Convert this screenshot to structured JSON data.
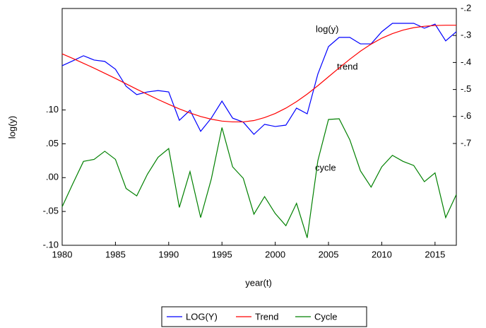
{
  "chart_data": {
    "type": "line",
    "y_label": "log(y)",
    "x_label": "year(t)",
    "annotations": [
      "log(y)",
      "trend",
      "cycle"
    ],
    "x": [
      1980,
      1981,
      1982,
      1983,
      1984,
      1985,
      1986,
      1987,
      1988,
      1989,
      1990,
      1991,
      1992,
      1993,
      1994,
      1995,
      1996,
      1997,
      1998,
      1999,
      2000,
      2001,
      2002,
      2003,
      2004,
      2005,
      2006,
      2007,
      2008,
      2009,
      2010,
      2011,
      2012,
      2013,
      2014,
      2015,
      2016,
      2017
    ],
    "xlim": [
      1980,
      2017
    ],
    "xticks": [
      1980,
      1985,
      1990,
      1995,
      2000,
      2005,
      2010,
      2015
    ],
    "ylim": [
      -0.1,
      0.25
    ],
    "yticks": [
      {
        "value": -0.1,
        "label": "-.10"
      },
      {
        "value": -0.05,
        "label": "-.05"
      },
      {
        "value": 0,
        "label": ".00"
      },
      {
        "value": 0.05,
        "label": ".05"
      },
      {
        "value": 0.1,
        "label": ".10"
      }
    ],
    "y2lim": [
      -1.077,
      -0.2
    ],
    "y2ticks": [
      {
        "value": -0.7,
        "label": "-.7"
      },
      {
        "value": -0.6,
        "label": "-.6"
      },
      {
        "value": -0.5,
        "label": "-.5"
      },
      {
        "value": -0.4,
        "label": "-.4"
      },
      {
        "value": -0.3,
        "label": "-.3"
      },
      {
        "value": -0.2,
        "label": "-.2"
      }
    ],
    "series": [
      {
        "name": "LOG(Y)",
        "color": "#0000ff",
        "axis": "y2",
        "values": [
          -0.412,
          -0.394,
          -0.375,
          -0.391,
          -0.396,
          -0.425,
          -0.488,
          -0.519,
          -0.509,
          -0.504,
          -0.509,
          -0.614,
          -0.577,
          -0.655,
          -0.606,
          -0.543,
          -0.606,
          -0.621,
          -0.666,
          -0.629,
          -0.637,
          -0.632,
          -0.569,
          -0.59,
          -0.443,
          -0.341,
          -0.307,
          -0.307,
          -0.331,
          -0.331,
          -0.286,
          -0.255,
          -0.255,
          -0.255,
          -0.273,
          -0.258,
          -0.32,
          -0.286
        ]
      },
      {
        "name": "Trend",
        "color": "#ff0000",
        "axis": "y2",
        "values": [
          -0.368,
          -0.385,
          -0.403,
          -0.421,
          -0.44,
          -0.459,
          -0.479,
          -0.499,
          -0.518,
          -0.537,
          -0.555,
          -0.572,
          -0.587,
          -0.6,
          -0.61,
          -0.617,
          -0.62,
          -0.62,
          -0.615,
          -0.604,
          -0.589,
          -0.569,
          -0.545,
          -0.517,
          -0.486,
          -0.453,
          -0.42,
          -0.388,
          -0.358,
          -0.332,
          -0.31,
          -0.293,
          -0.28,
          -0.271,
          -0.266,
          -0.263,
          -0.262,
          -0.262
        ]
      },
      {
        "name": "Cycle",
        "color": "#008000",
        "values": [
          -0.043,
          -0.009,
          0.024,
          0.027,
          0.039,
          0.027,
          -0.016,
          -0.027,
          0.005,
          0.03,
          0.043,
          -0.044,
          0.009,
          -0.059,
          -0.002,
          0.074,
          0.016,
          -0.001,
          -0.054,
          -0.028,
          -0.053,
          -0.071,
          -0.038,
          -0.089,
          0.025,
          0.086,
          0.087,
          0.056,
          0.01,
          -0.014,
          0.016,
          0.033,
          0.024,
          0.018,
          -0.006,
          0.007,
          -0.059,
          -0.025
        ]
      }
    ]
  }
}
